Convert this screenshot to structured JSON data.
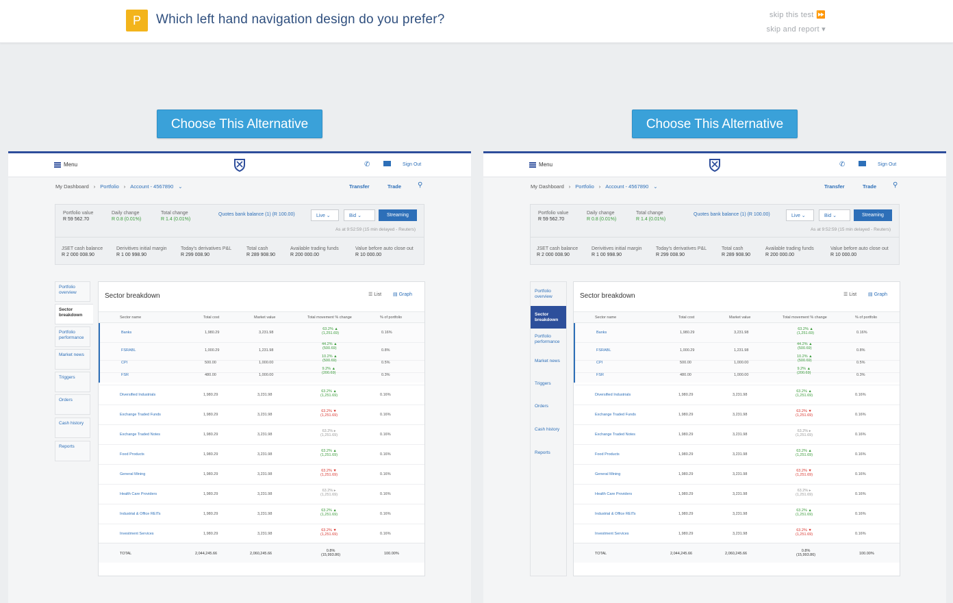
{
  "header": {
    "badge": "P",
    "question": "Which left hand navigation design do you prefer?",
    "skip_test": "skip this test ⏩",
    "skip_report": "skip and report ▾"
  },
  "choose_label": "Choose This Alternative",
  "app": {
    "menu": "Menu",
    "sign_out": "Sign Out",
    "crumbs": [
      "My Dashboard",
      "Portfolio",
      "Account - 4567890"
    ],
    "transfer": "Transfer",
    "trade": "Trade",
    "summary": {
      "portfolio_value_label": "Portfolio value",
      "portfolio_value": "R 59 562.70",
      "daily_change_label": "Daily change",
      "daily_change": "R 0.8 (0.01%)",
      "total_change_label": "Total change",
      "total_change": "R 1.4 (0.01%)",
      "quotes": "Quotes bank balance (1) (R 100.00)",
      "live": "Live",
      "bid": "Bid",
      "streaming": "Streaming",
      "delay": "As at 9:52:59 (15 min delayed - Reuters)",
      "stats": [
        {
          "label": "JSET cash balance",
          "value": "R 2 000 008.90"
        },
        {
          "label": "Derivitives initial margin",
          "value": "R 1 00 998.90"
        },
        {
          "label": "Today's derivatives P&L",
          "value": "R 299 008.90"
        },
        {
          "label": "Total cash",
          "value": "R 289 908.90"
        },
        {
          "label": "Available trading funds",
          "value": "R 200 000.00"
        },
        {
          "label": "Value before auto close out",
          "value": "R 10 000.00"
        }
      ]
    },
    "nav": [
      "Portfolio overview",
      "Sector breakdown",
      "Portfolio performance",
      "Market news",
      "Triggers",
      "Orders",
      "Cash history",
      "Reports"
    ],
    "card_title": "Sector breakdown",
    "list": "List",
    "graph": "Graph",
    "columns": [
      "Sector name",
      "Total cost",
      "Market value",
      "Total movement % change",
      "% of portfolio"
    ],
    "sub_rows": [
      {
        "name": "Banks",
        "cost": "1,980.29",
        "value": "3,231.98",
        "pct": "63.2%",
        "amt": "(1,251.69)",
        "dir": "up",
        "port": "0.16%"
      },
      {
        "name": "FSRABL",
        "cost": "1,000.29",
        "value": "1,231.98",
        "pct": "44.2%",
        "amt": "(500.69)",
        "dir": "up",
        "port": "0.8%"
      },
      {
        "name": "CPI",
        "cost": "500.00",
        "value": "1,000.00",
        "pct": "10.2%",
        "amt": "(500.69)",
        "dir": "up",
        "port": "0.5%"
      },
      {
        "name": "FSR",
        "cost": "480.00",
        "value": "1,000.00",
        "pct": "9.2%",
        "amt": "(200.69)",
        "dir": "up",
        "port": "0.3%"
      }
    ],
    "rows": [
      {
        "name": "Diversified Industrials",
        "cost": "1,980.29",
        "value": "3,231.98",
        "pct": "63.2%",
        "amt": "(1,251.69)",
        "dir": "up",
        "port": "0.16%"
      },
      {
        "name": "Exchange Traded Funds",
        "cost": "1,980.29",
        "value": "3,231.98",
        "pct": "63.2%",
        "amt": "(1,251.69)",
        "dir": "dn",
        "port": "0.16%"
      },
      {
        "name": "Exchange Traded Notes",
        "cost": "1,980.29",
        "value": "3,231.98",
        "pct": "63.2%",
        "amt": "(1,251.69)",
        "dir": "ne",
        "port": "0.16%"
      },
      {
        "name": "Food Products",
        "cost": "1,980.29",
        "value": "3,231.98",
        "pct": "63.2%",
        "amt": "(1,251.69)",
        "dir": "up",
        "port": "0.16%"
      },
      {
        "name": "General Mining",
        "cost": "1,980.29",
        "value": "3,231.98",
        "pct": "63.2%",
        "amt": "(1,251.69)",
        "dir": "dn",
        "port": "0.16%"
      },
      {
        "name": "Health Care Providers",
        "cost": "1,980.29",
        "value": "3,231.98",
        "pct": "63.2%",
        "amt": "(1,251.69)",
        "dir": "ne",
        "port": "0.16%"
      },
      {
        "name": "Industrial & Office REITs",
        "cost": "1,980.29",
        "value": "3,231.98",
        "pct": "63.2%",
        "amt": "(1,251.69)",
        "dir": "up",
        "port": "0.16%"
      },
      {
        "name": "Investment Services",
        "cost": "1,980.29",
        "value": "3,231.98",
        "pct": "63.2%",
        "amt": "(1,251.69)",
        "dir": "dn",
        "port": "0.16%"
      }
    ],
    "total": {
      "name": "TOTAL",
      "cost": "2,044,245.66",
      "value": "2,060,245.66",
      "pct": "0.8%",
      "amt": "(15,993.86)",
      "port": "100.00%"
    }
  }
}
